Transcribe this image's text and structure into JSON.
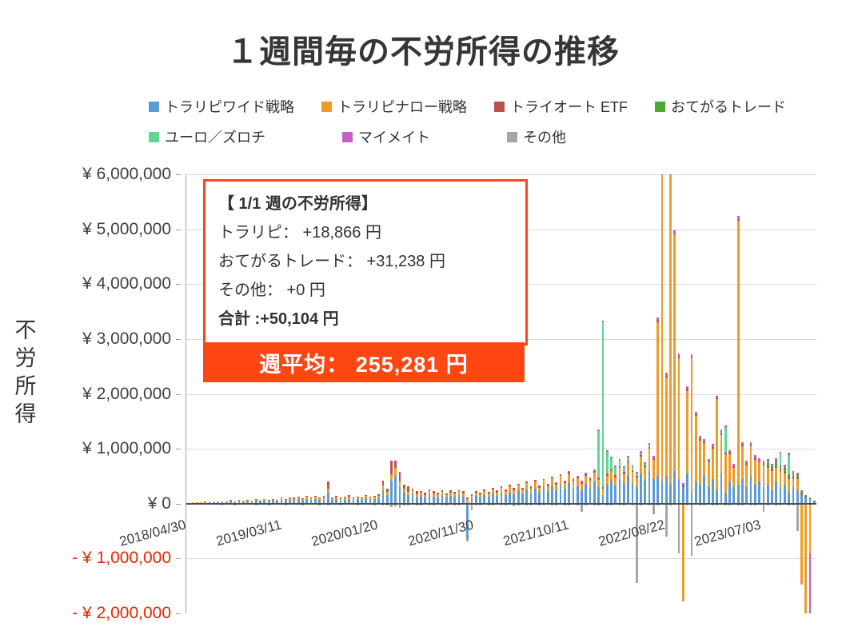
{
  "colors": {
    "accent": "#ff4713",
    "negative_label": "#e62600",
    "grid": "#d9d9d9",
    "axis": "#404040"
  },
  "annotation": {
    "title": "【 1/1 週の不労所得】",
    "lines": [
      "トラリピ： +18,866 円",
      "おてがるトレード： +31,238 円",
      "その他： +0 円"
    ],
    "total": "合計 :+50,104 円"
  },
  "banner": {
    "text": "週平均： 255,281 円"
  },
  "chart_data": {
    "type": "bar",
    "stacked": true,
    "title": "１週間毎の不労所得の推移",
    "ylabel": "不労所得",
    "ylim": [
      -2000000,
      6000000
    ],
    "grid_step": 1000000,
    "value_unit": 1000,
    "total_weeks": 296,
    "weeks_per_bar": 2,
    "legend_position": "top",
    "grid": true,
    "series": [
      {
        "name": "トラリピワイド戦略",
        "color": "#5b9bd5",
        "row": 1
      },
      {
        "name": "トラリピナロー戦略",
        "color": "#ef9b28",
        "row": 1
      },
      {
        "name": "トライオート ETF",
        "color": "#c0504d",
        "row": 1
      },
      {
        "name": "おてがるトレード",
        "color": "#4ea72e",
        "row": 1
      },
      {
        "name": "ユーロ／ズロチ",
        "color": "#62d493",
        "row": 2
      },
      {
        "name": "マイメイト",
        "color": "#c55fc9",
        "row": 2
      },
      {
        "name": "その他",
        "color": "#a6a6a6",
        "row": 2
      }
    ],
    "y_ticks": [
      {
        "value": 6000000,
        "label": "¥ 6,000,000",
        "negative": false
      },
      {
        "value": 5000000,
        "label": "¥ 5,000,000",
        "negative": false
      },
      {
        "value": 4000000,
        "label": "¥ 4,000,000",
        "negative": false
      },
      {
        "value": 3000000,
        "label": "¥ 3,000,000",
        "negative": false
      },
      {
        "value": 2000000,
        "label": "¥ 2,000,000",
        "negative": false
      },
      {
        "value": 1000000,
        "label": "¥ 1,000,000",
        "negative": false
      },
      {
        "value": 0,
        "label": "¥ 0",
        "negative": false
      },
      {
        "value": -1000000,
        "label": "- ¥ 1,000,000",
        "negative": true
      },
      {
        "value": -2000000,
        "label": "- ¥ 2,000,000",
        "negative": true
      }
    ],
    "x_ticks": [
      {
        "label": "2018/04/30",
        "week": 0
      },
      {
        "label": "2019/03/11",
        "week": 45
      },
      {
        "label": "2020/01/20",
        "week": 90
      },
      {
        "label": "2020/11/30",
        "week": 135
      },
      {
        "label": "2021/10/11",
        "week": 180
      },
      {
        "label": "2022/08/22",
        "week": 225
      },
      {
        "label": "2023/07/03",
        "week": 270
      }
    ],
    "bars": [
      [
        12,
        5,
        0,
        0,
        0,
        0,
        -15
      ],
      [
        18,
        6,
        0,
        0,
        0,
        0,
        -20
      ],
      [
        15,
        10,
        0,
        0,
        0,
        0,
        -18
      ],
      [
        22,
        8,
        0,
        0,
        0,
        0,
        -22
      ],
      [
        20,
        12,
        4,
        0,
        0,
        0,
        -15
      ],
      [
        28,
        10,
        0,
        0,
        0,
        0,
        -25
      ],
      [
        16,
        8,
        5,
        0,
        0,
        0,
        -18
      ],
      [
        35,
        12,
        0,
        0,
        0,
        0,
        -20
      ],
      [
        25,
        15,
        6,
        0,
        0,
        0,
        -28
      ],
      [
        30,
        10,
        0,
        0,
        0,
        0,
        -15
      ],
      [
        40,
        18,
        8,
        0,
        0,
        0,
        -22
      ],
      [
        22,
        12,
        0,
        0,
        0,
        0,
        -30
      ],
      [
        38,
        15,
        10,
        0,
        0,
        0,
        -18
      ],
      [
        28,
        20,
        0,
        0,
        0,
        0,
        -20
      ],
      [
        45,
        15,
        12,
        0,
        0,
        0,
        -25
      ],
      [
        32,
        18,
        0,
        0,
        0,
        0,
        -15
      ],
      [
        50,
        22,
        8,
        0,
        0,
        0,
        -28
      ],
      [
        35,
        15,
        10,
        0,
        0,
        0,
        -20
      ],
      [
        60,
        25,
        0,
        0,
        0,
        0,
        -22
      ],
      [
        40,
        20,
        15,
        0,
        0,
        0,
        -30
      ],
      [
        55,
        18,
        10,
        0,
        0,
        0,
        -18
      ],
      [
        48,
        25,
        0,
        0,
        0,
        0,
        -25
      ],
      [
        65,
        30,
        12,
        0,
        0,
        0,
        -20
      ],
      [
        50,
        22,
        15,
        0,
        0,
        0,
        -28
      ],
      [
        70,
        28,
        10,
        0,
        0,
        0,
        -22
      ],
      [
        55,
        35,
        18,
        0,
        0,
        0,
        -15
      ],
      [
        80,
        30,
        20,
        0,
        0,
        0,
        -25
      ],
      [
        60,
        25,
        15,
        0,
        0,
        0,
        -30
      ],
      [
        90,
        35,
        22,
        0,
        0,
        0,
        -20
      ],
      [
        70,
        30,
        18,
        0,
        0,
        0,
        -25
      ],
      [
        85,
        40,
        15,
        0,
        0,
        0,
        -18
      ],
      [
        65,
        28,
        20,
        0,
        0,
        0,
        -28
      ],
      [
        75,
        35,
        25,
        0,
        0,
        0,
        -22
      ],
      [
        200,
        80,
        130,
        0,
        0,
        0,
        -30
      ],
      [
        70,
        30,
        18,
        0,
        0,
        0,
        -20
      ],
      [
        85,
        35,
        15,
        0,
        0,
        0,
        -25
      ],
      [
        60,
        28,
        20,
        0,
        0,
        0,
        -30
      ],
      [
        75,
        32,
        15,
        0,
        0,
        0,
        -18
      ],
      [
        90,
        38,
        22,
        0,
        0,
        0,
        -25
      ],
      [
        65,
        30,
        18,
        0,
        0,
        0,
        -20
      ],
      [
        80,
        35,
        15,
        0,
        0,
        0,
        -28
      ],
      [
        70,
        30,
        20,
        0,
        0,
        0,
        -22
      ],
      [
        95,
        40,
        18,
        0,
        0,
        0,
        -15
      ],
      [
        75,
        32,
        25,
        0,
        0,
        0,
        -25
      ],
      [
        85,
        38,
        20,
        0,
        0,
        0,
        -30
      ],
      [
        100,
        45,
        30,
        0,
        0,
        0,
        -22
      ],
      [
        250,
        80,
        90,
        0,
        0,
        0,
        -35
      ],
      [
        150,
        60,
        60,
        0,
        0,
        0,
        -28
      ],
      [
        420,
        120,
        240,
        0,
        0,
        0,
        -60
      ],
      [
        500,
        150,
        130,
        0,
        0,
        0,
        -45
      ],
      [
        300,
        100,
        180,
        0,
        0,
        0,
        -80
      ],
      [
        200,
        80,
        60,
        0,
        0,
        0,
        -35
      ],
      [
        150,
        70,
        90,
        0,
        0,
        0,
        -30
      ],
      [
        180,
        60,
        40,
        0,
        0,
        0,
        -25
      ],
      [
        120,
        55,
        60,
        0,
        0,
        0,
        -40
      ],
      [
        140,
        65,
        30,
        0,
        0,
        0,
        -28
      ],
      [
        110,
        50,
        45,
        0,
        0,
        0,
        -22
      ],
      [
        160,
        70,
        25,
        0,
        0,
        0,
        -35
      ],
      [
        130,
        60,
        40,
        0,
        0,
        0,
        -30
      ],
      [
        120,
        55,
        30,
        0,
        0,
        0,
        -25
      ],
      [
        150,
        65,
        35,
        0,
        0,
        0,
        -40
      ],
      [
        110,
        50,
        25,
        0,
        0,
        0,
        -28
      ],
      [
        140,
        60,
        40,
        0,
        0,
        0,
        -22
      ],
      [
        125,
        55,
        30,
        0,
        0,
        0,
        -35
      ],
      [
        160,
        70,
        20,
        0,
        0,
        0,
        -30
      ],
      [
        130,
        60,
        35,
        0,
        0,
        0,
        -25
      ],
      [
        -650,
        80,
        30,
        0,
        0,
        0,
        -45
      ],
      [
        100,
        45,
        25,
        0,
        0,
        0,
        -120
      ],
      [
        140,
        60,
        30,
        0,
        0,
        0,
        -35
      ],
      [
        120,
        55,
        20,
        0,
        0,
        0,
        -28
      ],
      [
        160,
        70,
        35,
        0,
        0,
        0,
        -22
      ],
      [
        130,
        60,
        25,
        0,
        0,
        0,
        -40
      ],
      [
        180,
        75,
        30,
        0,
        0,
        0,
        -30
      ],
      [
        140,
        65,
        40,
        0,
        0,
        0,
        -25
      ],
      [
        200,
        85,
        25,
        0,
        0,
        0,
        -35
      ],
      [
        160,
        70,
        35,
        0,
        0,
        0,
        -28
      ],
      [
        220,
        90,
        30,
        0,
        0,
        0,
        -22
      ],
      [
        170,
        75,
        40,
        0,
        0,
        0,
        -45
      ],
      [
        240,
        100,
        25,
        0,
        0,
        0,
        -30
      ],
      [
        180,
        80,
        35,
        0,
        0,
        0,
        -25
      ],
      [
        260,
        110,
        30,
        0,
        0,
        0,
        -35
      ],
      [
        190,
        85,
        45,
        0,
        0,
        0,
        -28
      ],
      [
        280,
        120,
        30,
        0,
        0,
        0,
        -22
      ],
      [
        200,
        90,
        40,
        0,
        0,
        0,
        -40
      ],
      [
        300,
        130,
        25,
        0,
        0,
        0,
        -30
      ],
      [
        220,
        95,
        35,
        0,
        0,
        5,
        -25
      ],
      [
        320,
        140,
        30,
        0,
        0,
        8,
        -35
      ],
      [
        240,
        100,
        45,
        0,
        0,
        10,
        -28
      ],
      [
        350,
        150,
        25,
        0,
        0,
        12,
        -22
      ],
      [
        260,
        110,
        35,
        0,
        0,
        15,
        -40
      ],
      [
        380,
        160,
        30,
        0,
        0,
        18,
        -30
      ],
      [
        280,
        120,
        40,
        0,
        0,
        20,
        -25
      ],
      [
        320,
        140,
        25,
        0,
        0,
        22,
        -35
      ],
      [
        250,
        110,
        35,
        0,
        0,
        18,
        -150
      ],
      [
        360,
        150,
        30,
        0,
        0,
        25,
        -28
      ],
      [
        290,
        130,
        40,
        0,
        0,
        20,
        -22
      ],
      [
        400,
        170,
        25,
        0,
        0,
        28,
        -40
      ],
      [
        300,
        140,
        35,
        0,
        850,
        25,
        -30
      ],
      [
        150,
        120,
        30,
        0,
        3000,
        30,
        -25
      ],
      [
        350,
        160,
        40,
        0,
        400,
        28,
        -35
      ],
      [
        420,
        180,
        25,
        0,
        200,
        32,
        -28
      ],
      [
        330,
        150,
        35,
        0,
        150,
        25,
        -22
      ],
      [
        450,
        200,
        30,
        0,
        100,
        35,
        -40
      ],
      [
        360,
        170,
        45,
        0,
        80,
        28,
        -30
      ],
      [
        500,
        250,
        25,
        0,
        60,
        38,
        -25
      ],
      [
        380,
        200,
        35,
        0,
        50,
        30,
        -35
      ],
      [
        300,
        180,
        30,
        0,
        40,
        25,
        -1450
      ],
      [
        550,
        300,
        40,
        0,
        30,
        42,
        -28
      ],
      [
        420,
        250,
        25,
        0,
        25,
        35,
        -22
      ],
      [
        600,
        400,
        35,
        0,
        20,
        45,
        -40
      ],
      [
        450,
        350,
        30,
        0,
        0,
        38,
        -200
      ],
      [
        500,
        2800,
        40,
        0,
        0,
        50,
        -30
      ],
      [
        400,
        5800,
        35,
        0,
        0,
        42,
        -25
      ],
      [
        500,
        1800,
        30,
        0,
        0,
        55,
        -600
      ],
      [
        350,
        6000,
        40,
        0,
        0,
        45,
        -30
      ],
      [
        600,
        4300,
        25,
        0,
        0,
        60,
        -25
      ],
      [
        450,
        2200,
        35,
        0,
        0,
        48,
        -900
      ],
      [
        300,
        -1750,
        30,
        0,
        0,
        40,
        -35
      ],
      [
        550,
        1500,
        40,
        0,
        0,
        52,
        -28
      ],
      [
        200,
        2450,
        25,
        0,
        0,
        45,
        -950
      ],
      [
        400,
        1200,
        35,
        0,
        0,
        38,
        -22
      ],
      [
        350,
        800,
        30,
        0,
        0,
        48,
        -40
      ],
      [
        500,
        600,
        40,
        0,
        0,
        42,
        -30
      ],
      [
        300,
        450,
        25,
        0,
        0,
        35,
        -25
      ],
      [
        450,
        550,
        35,
        0,
        0,
        50,
        -35
      ],
      [
        250,
        1650,
        30,
        0,
        0,
        40,
        -28
      ],
      [
        550,
        700,
        40,
        0,
        0,
        55,
        -22
      ],
      [
        200,
        700,
        25,
        0,
        450,
        45,
        -40
      ],
      [
        400,
        500,
        35,
        0,
        0,
        38,
        -30
      ],
      [
        300,
        350,
        30,
        0,
        0,
        48,
        -25
      ],
      [
        350,
        4800,
        40,
        0,
        0,
        52,
        -35
      ],
      [
        450,
        600,
        25,
        0,
        0,
        42,
        -28
      ],
      [
        300,
        400,
        35,
        0,
        0,
        55,
        -22
      ],
      [
        500,
        550,
        30,
        0,
        0,
        45,
        -40
      ],
      [
        350,
        450,
        40,
        0,
        0,
        38,
        -30
      ],
      [
        400,
        350,
        25,
        0,
        0,
        50,
        -25
      ],
      [
        300,
        400,
        35,
        0,
        0,
        42,
        -150
      ],
      [
        350,
        300,
        25,
        80,
        0,
        55,
        -30
      ],
      [
        250,
        350,
        30,
        60,
        0,
        40,
        -25
      ],
      [
        400,
        250,
        35,
        90,
        0,
        48,
        -35
      ],
      [
        300,
        300,
        25,
        70,
        200,
        42,
        -28
      ],
      [
        350,
        200,
        30,
        80,
        0,
        50,
        -22
      ],
      [
        200,
        250,
        25,
        60,
        350,
        38,
        -40
      ],
      [
        300,
        150,
        35,
        70,
        0,
        45,
        -30
      ],
      [
        250,
        200,
        30,
        50,
        0,
        40,
        -500
      ],
      [
        150,
        -1450,
        25,
        40,
        0,
        35,
        -28
      ],
      [
        100,
        -2250,
        20,
        30,
        0,
        0,
        -35
      ],
      [
        80,
        -900,
        15,
        25,
        0,
        -1300,
        -25
      ],
      [
        19,
        0,
        0,
        31,
        0,
        0,
        0
      ]
    ]
  }
}
